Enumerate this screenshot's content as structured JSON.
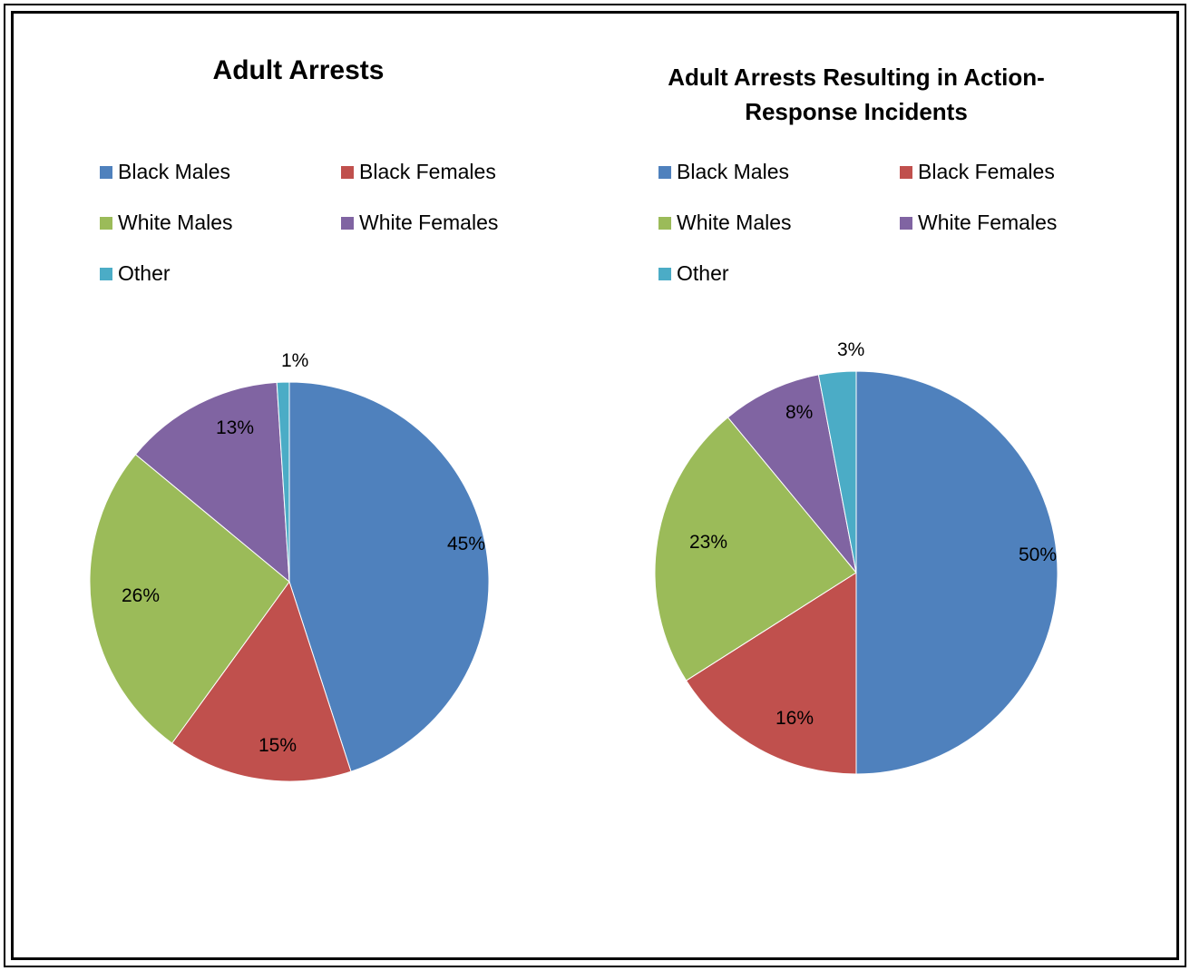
{
  "chart_data": [
    {
      "type": "pie",
      "title": "Adult Arrests",
      "labels": [
        "Black Males",
        "Black Females",
        "White Males",
        "White Females",
        "Other"
      ],
      "values": [
        45,
        15,
        26,
        13,
        1
      ],
      "value_labels": [
        "45%",
        "15%",
        "26%",
        "13%",
        "1%"
      ],
      "colors": [
        "#4F81BD",
        "#C0504D",
        "#9BBB59",
        "#8064A2",
        "#4BACC6"
      ],
      "legend_position": "top"
    },
    {
      "type": "pie",
      "title": "Adult Arrests Resulting in Action-Response Incidents",
      "labels": [
        "Black Males",
        "Black Females",
        "White Males",
        "White Females",
        "Other"
      ],
      "values": [
        50,
        16,
        23,
        8,
        3
      ],
      "value_labels": [
        "50%",
        "16%",
        "23%",
        "8%",
        "3%"
      ],
      "colors": [
        "#4F81BD",
        "#C0504D",
        "#9BBB59",
        "#8064A2",
        "#4BACC6"
      ],
      "legend_position": "top"
    }
  ]
}
